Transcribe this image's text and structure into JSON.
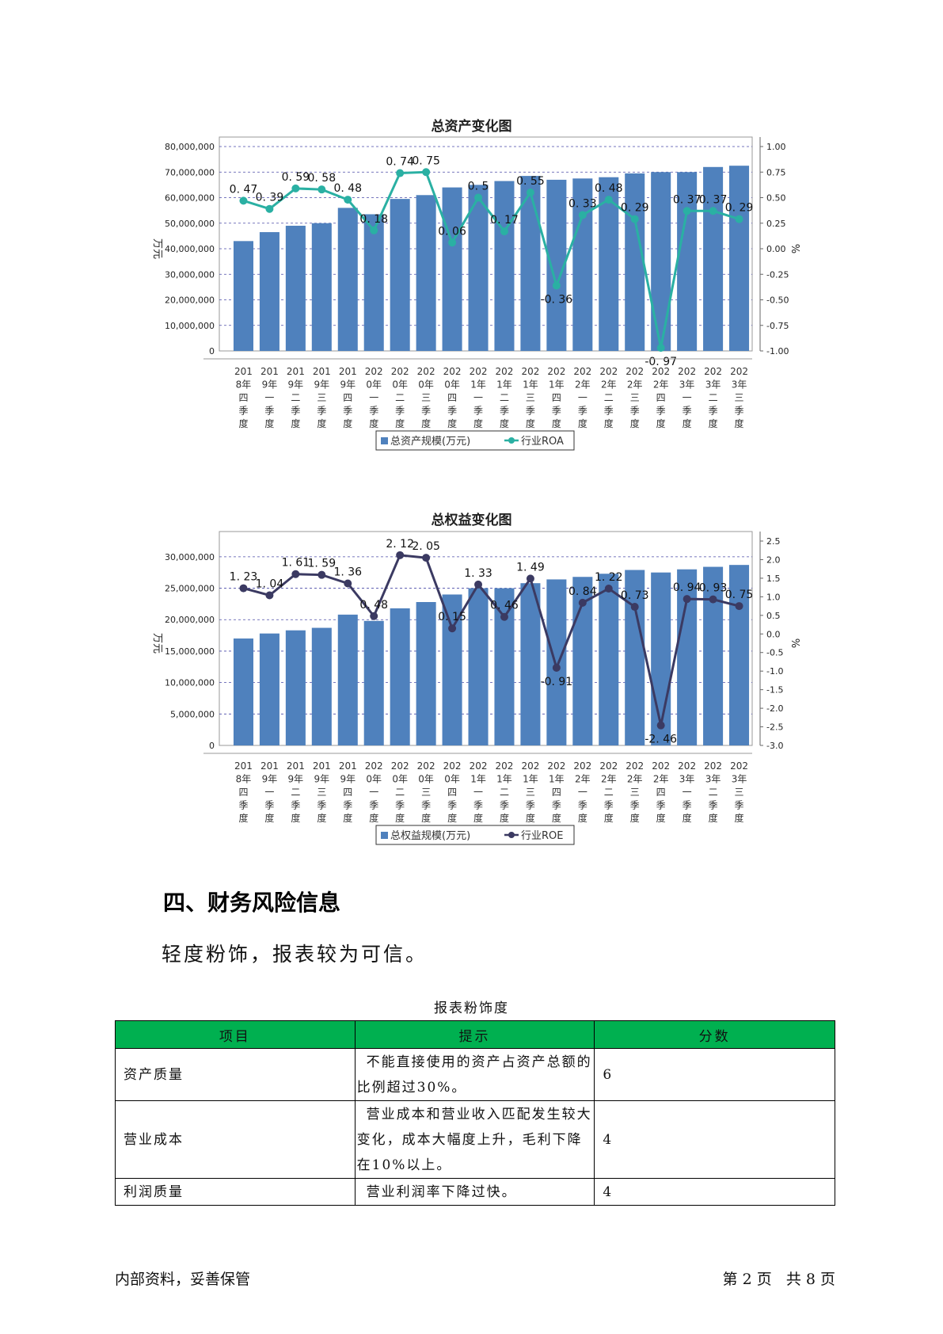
{
  "chart_data": [
    {
      "type": "bar",
      "title": "总资产变化图",
      "ylabel": "万元",
      "y2label": "%",
      "categories": [
        "2018年四季度",
        "2019年一季度",
        "2019年二季度",
        "2019年三季度",
        "2019年四季度",
        "2020年一季度",
        "2020年二季度",
        "2020年三季度",
        "2020年四季度",
        "2021年一季度",
        "2021年二季度",
        "2021年三季度",
        "2021年四季度",
        "2022年一季度",
        "2022年二季度",
        "2022年三季度",
        "2022年四季度",
        "2023年一季度",
        "2023年二季度",
        "2023年三季度"
      ],
      "category_label_lines": [
        [
          "201",
          "8年",
          "四",
          "季",
          "度"
        ],
        [
          "201",
          "9年",
          "一",
          "季",
          "度"
        ],
        [
          "201",
          "9年",
          "二",
          "季",
          "度"
        ],
        [
          "201",
          "9年",
          "三",
          "季",
          "度"
        ],
        [
          "201",
          "9年",
          "四",
          "季",
          "度"
        ],
        [
          "202",
          "0年",
          "一",
          "季",
          "度"
        ],
        [
          "202",
          "0年",
          "二",
          "季",
          "度"
        ],
        [
          "202",
          "0年",
          "三",
          "季",
          "度"
        ],
        [
          "202",
          "0年",
          "四",
          "季",
          "度"
        ],
        [
          "202",
          "1年",
          "一",
          "季",
          "度"
        ],
        [
          "202",
          "1年",
          "二",
          "季",
          "度"
        ],
        [
          "202",
          "1年",
          "三",
          "季",
          "度"
        ],
        [
          "202",
          "1年",
          "四",
          "季",
          "度"
        ],
        [
          "202",
          "2年",
          "一",
          "季",
          "度"
        ],
        [
          "202",
          "2年",
          "二",
          "季",
          "度"
        ],
        [
          "202",
          "2年",
          "三",
          "季",
          "度"
        ],
        [
          "202",
          "2年",
          "四",
          "季",
          "度"
        ],
        [
          "202",
          "3年",
          "一",
          "季",
          "度"
        ],
        [
          "202",
          "3年",
          "二",
          "季",
          "度"
        ],
        [
          "202",
          "3年",
          "三",
          "季",
          "度"
        ]
      ],
      "ylim": [
        0,
        80000000
      ],
      "y2lim": [
        -1.0,
        1.0
      ],
      "y_ticks": [
        "0",
        "10,000,000",
        "20,000,000",
        "30,000,000",
        "40,000,000",
        "50,000,000",
        "60,000,000",
        "70,000,000",
        "80,000,000"
      ],
      "y2_ticks": [
        "-1.00",
        "-0.75",
        "-0.50",
        "-0.25",
        "0.00",
        "0.25",
        "0.50",
        "0.75",
        "1.00"
      ],
      "series": [
        {
          "name": "总资产规模(万元)",
          "kind": "bar",
          "color": "#4f81bd",
          "values": [
            43000000,
            46500000,
            49000000,
            50000000,
            56000000,
            53500000,
            59500000,
            61000000,
            64000000,
            65000000,
            66500000,
            68500000,
            67000000,
            67500000,
            68000000,
            69500000,
            70000000,
            70000000,
            72000000,
            72500000
          ]
        },
        {
          "name": "行业ROA",
          "kind": "line",
          "axis": "right",
          "color": "#2ab0a3",
          "values": [
            0.47,
            0.39,
            0.59,
            0.58,
            0.48,
            0.18,
            0.74,
            0.75,
            0.06,
            0.5,
            0.17,
            0.55,
            -0.36,
            0.33,
            0.48,
            0.29,
            -0.97,
            0.37,
            0.37,
            0.29
          ],
          "labels": [
            "0. 47",
            "0. 39",
            "0. 59",
            "0. 58",
            "0. 48",
            "0. 18",
            "0. 74",
            "0. 75",
            "0. 06",
            "0. 5",
            "0. 17",
            "0. 55",
            "-0. 36",
            "0. 33",
            "0. 48",
            "0. 29",
            "-0. 97",
            "0. 37",
            "0. 37",
            "0. 29"
          ]
        }
      ],
      "legend_position": "bottom",
      "grid": true
    },
    {
      "type": "bar",
      "title": "总权益变化图",
      "ylabel": "万元",
      "y2label": "%",
      "categories": [
        "2018年四季度",
        "2019年一季度",
        "2019年二季度",
        "2019年三季度",
        "2019年四季度",
        "2020年一季度",
        "2020年二季度",
        "2020年三季度",
        "2020年四季度",
        "2021年一季度",
        "2021年二季度",
        "2021年三季度",
        "2021年四季度",
        "2022年一季度",
        "2022年二季度",
        "2022年三季度",
        "2022年四季度",
        "2023年一季度",
        "2023年二季度",
        "2023年三季度"
      ],
      "category_label_lines": [
        [
          "201",
          "8年",
          "四",
          "季",
          "度"
        ],
        [
          "201",
          "9年",
          "一",
          "季",
          "度"
        ],
        [
          "201",
          "9年",
          "二",
          "季",
          "度"
        ],
        [
          "201",
          "9年",
          "三",
          "季",
          "度"
        ],
        [
          "201",
          "9年",
          "四",
          "季",
          "度"
        ],
        [
          "202",
          "0年",
          "一",
          "季",
          "度"
        ],
        [
          "202",
          "0年",
          "二",
          "季",
          "度"
        ],
        [
          "202",
          "0年",
          "三",
          "季",
          "度"
        ],
        [
          "202",
          "0年",
          "四",
          "季",
          "度"
        ],
        [
          "202",
          "1年",
          "一",
          "季",
          "度"
        ],
        [
          "202",
          "1年",
          "二",
          "季",
          "度"
        ],
        [
          "202",
          "1年",
          "三",
          "季",
          "度"
        ],
        [
          "202",
          "1年",
          "四",
          "季",
          "度"
        ],
        [
          "202",
          "2年",
          "一",
          "季",
          "度"
        ],
        [
          "202",
          "2年",
          "二",
          "季",
          "度"
        ],
        [
          "202",
          "2年",
          "三",
          "季",
          "度"
        ],
        [
          "202",
          "2年",
          "四",
          "季",
          "度"
        ],
        [
          "202",
          "3年",
          "一",
          "季",
          "度"
        ],
        [
          "202",
          "3年",
          "二",
          "季",
          "度"
        ],
        [
          "202",
          "3年",
          "三",
          "季",
          "度"
        ]
      ],
      "ylim": [
        0,
        32500000
      ],
      "y2lim": [
        -3.0,
        2.5
      ],
      "y_ticks": [
        "0",
        "5,000,000",
        "10,000,000",
        "15,000,000",
        "20,000,000",
        "25,000,000",
        "30,000,000"
      ],
      "y2_ticks": [
        "-3.0",
        "-2.5",
        "-2.0",
        "-1.5",
        "-1.0",
        "-0.5",
        "0.0",
        "0.5",
        "1.0",
        "1.5",
        "2.0",
        "2.5"
      ],
      "series": [
        {
          "name": "总权益规模(万元)",
          "kind": "bar",
          "color": "#4f81bd",
          "values": [
            17000000,
            17800000,
            18300000,
            18700000,
            20800000,
            19800000,
            21800000,
            22800000,
            24000000,
            25000000,
            25000000,
            25800000,
            26400000,
            26800000,
            27300000,
            27900000,
            27500000,
            28000000,
            28400000,
            28700000
          ]
        },
        {
          "name": "行业ROE",
          "kind": "line",
          "axis": "right",
          "color": "#3b3a62",
          "values": [
            1.23,
            1.04,
            1.61,
            1.59,
            1.36,
            0.48,
            2.12,
            2.05,
            0.15,
            1.33,
            0.46,
            1.49,
            -0.91,
            0.84,
            1.22,
            0.73,
            -2.46,
            0.94,
            0.93,
            0.75
          ],
          "labels": [
            "1. 23",
            "1. 04",
            "1. 61",
            "1. 59",
            "1. 36",
            "0. 48",
            "2. 12",
            "2. 05",
            "0. 15",
            "1. 33",
            "0. 46",
            "1. 49",
            "-0. 91",
            "0. 84",
            "1. 22",
            "0. 73",
            "-2. 46",
            "0. 94",
            "0. 93",
            "0. 75"
          ]
        }
      ],
      "legend_position": "bottom",
      "grid": true
    }
  ],
  "section": {
    "heading": "四、财务风险信息",
    "summary": "轻度粉饰，报表较为可信。"
  },
  "table": {
    "caption": "报表粉饰度",
    "headers": [
      "项目",
      "提示",
      "分数"
    ],
    "rows": [
      {
        "item": "资产质量",
        "hint": "不能直接使用的资产占资产总额的比例超过30%。",
        "score": "6"
      },
      {
        "item": "营业成本",
        "hint": "营业成本和营业收入匹配发生较大变化，成本大幅度上升，毛利下降在10%以上。",
        "score": "4"
      },
      {
        "item": "利润质量",
        "hint": "营业利润率下降过快。",
        "score": "4"
      }
    ]
  },
  "footer": {
    "left": "内部资料，妥善保管",
    "right": "第 2 页   共 8 页"
  },
  "colors": {
    "bar": "#4f81bd",
    "roa_line": "#2ab0a3",
    "roe_line": "#3b3a62",
    "table_header": "#00b050",
    "grid": "#4a4aa8"
  }
}
